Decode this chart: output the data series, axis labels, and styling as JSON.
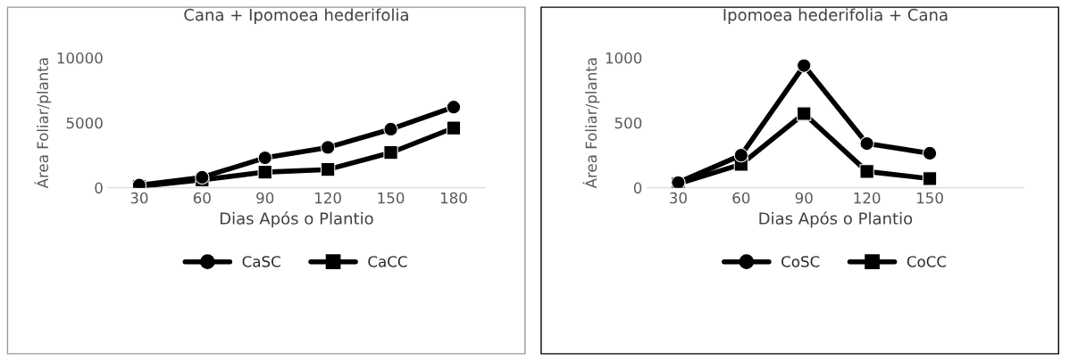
{
  "chart_data": [
    {
      "type": "line",
      "title": "Cana + Ipomoea hederifolia",
      "xlabel": "Dias Após o Plantio",
      "ylabel": "Área Foliar/planta",
      "categories": [
        "30",
        "60",
        "90",
        "120",
        "150",
        "180"
      ],
      "ylim": [
        0,
        10000
      ],
      "yticks": [
        0,
        5000,
        10000
      ],
      "grid": false,
      "legend": "bottom",
      "series": [
        {
          "name": "CaSC",
          "color": "#000000",
          "marker": "circle",
          "values": [
            200,
            800,
            2300,
            3100,
            4500,
            6200
          ]
        },
        {
          "name": "CaCC",
          "color": "#000000",
          "marker": "square",
          "values": [
            100,
            600,
            1200,
            1400,
            2700,
            4600
          ]
        }
      ]
    },
    {
      "type": "line",
      "title": "Ipomoea hederifolia + Cana",
      "xlabel": "Dias Após o Plantio",
      "ylabel": "Área Foliar/planta",
      "categories": [
        "30",
        "60",
        "90",
        "120",
        "150",
        null
      ],
      "ylim": [
        0,
        1000
      ],
      "yticks": [
        0,
        500,
        1000
      ],
      "grid": false,
      "legend": "bottom",
      "series": [
        {
          "name": "CoSC",
          "color": "#000000",
          "marker": "circle",
          "values": [
            40,
            250,
            940,
            340,
            265,
            null
          ]
        },
        {
          "name": "CoCC",
          "color": "#000000",
          "marker": "square",
          "values": [
            30,
            180,
            570,
            125,
            70,
            null
          ]
        }
      ]
    }
  ]
}
